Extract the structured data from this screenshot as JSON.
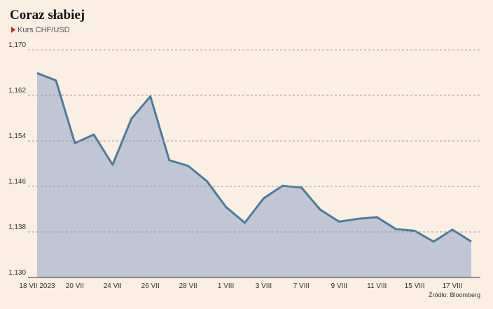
{
  "chart_data": {
    "type": "area",
    "title": "Coraz słabiej",
    "subtitle": "Kurs CHF/USD",
    "source": "Źródło: Bloomberg",
    "categories": [
      "18 VII 2023",
      null,
      "20 VII",
      null,
      "24 VII",
      null,
      "26 VII",
      null,
      "28 VII",
      null,
      "1 VIII",
      null,
      "3 VIII",
      null,
      "7 VIII",
      null,
      "9 VIII",
      null,
      "11 VIII",
      null,
      "15 VIII",
      null,
      "17 VIII",
      null
    ],
    "series": [
      {
        "name": "Kurs CHF/USD",
        "color": "#4e7b9b",
        "fill": "#c1c6d6",
        "values": [
          1.1659,
          1.1646,
          1.1536,
          1.1551,
          1.1498,
          1.1579,
          1.1618,
          1.1506,
          1.1496,
          1.1469,
          1.1424,
          1.1396,
          1.1439,
          1.1461,
          1.1458,
          1.1419,
          1.1398,
          1.1403,
          1.1406,
          1.1385,
          1.1382,
          1.1363,
          1.1384,
          1.1363
        ]
      }
    ],
    "ylim": [
      1.13,
      1.17
    ],
    "yticks": [
      {
        "value": 1.13,
        "label": "1,130"
      },
      {
        "value": 1.138,
        "label": "1,138"
      },
      {
        "value": 1.146,
        "label": "1,146"
      },
      {
        "value": 1.154,
        "label": "1,154"
      },
      {
        "value": 1.162,
        "label": "1,162"
      },
      {
        "value": 1.17,
        "label": "1,170"
      }
    ],
    "grid": true
  }
}
